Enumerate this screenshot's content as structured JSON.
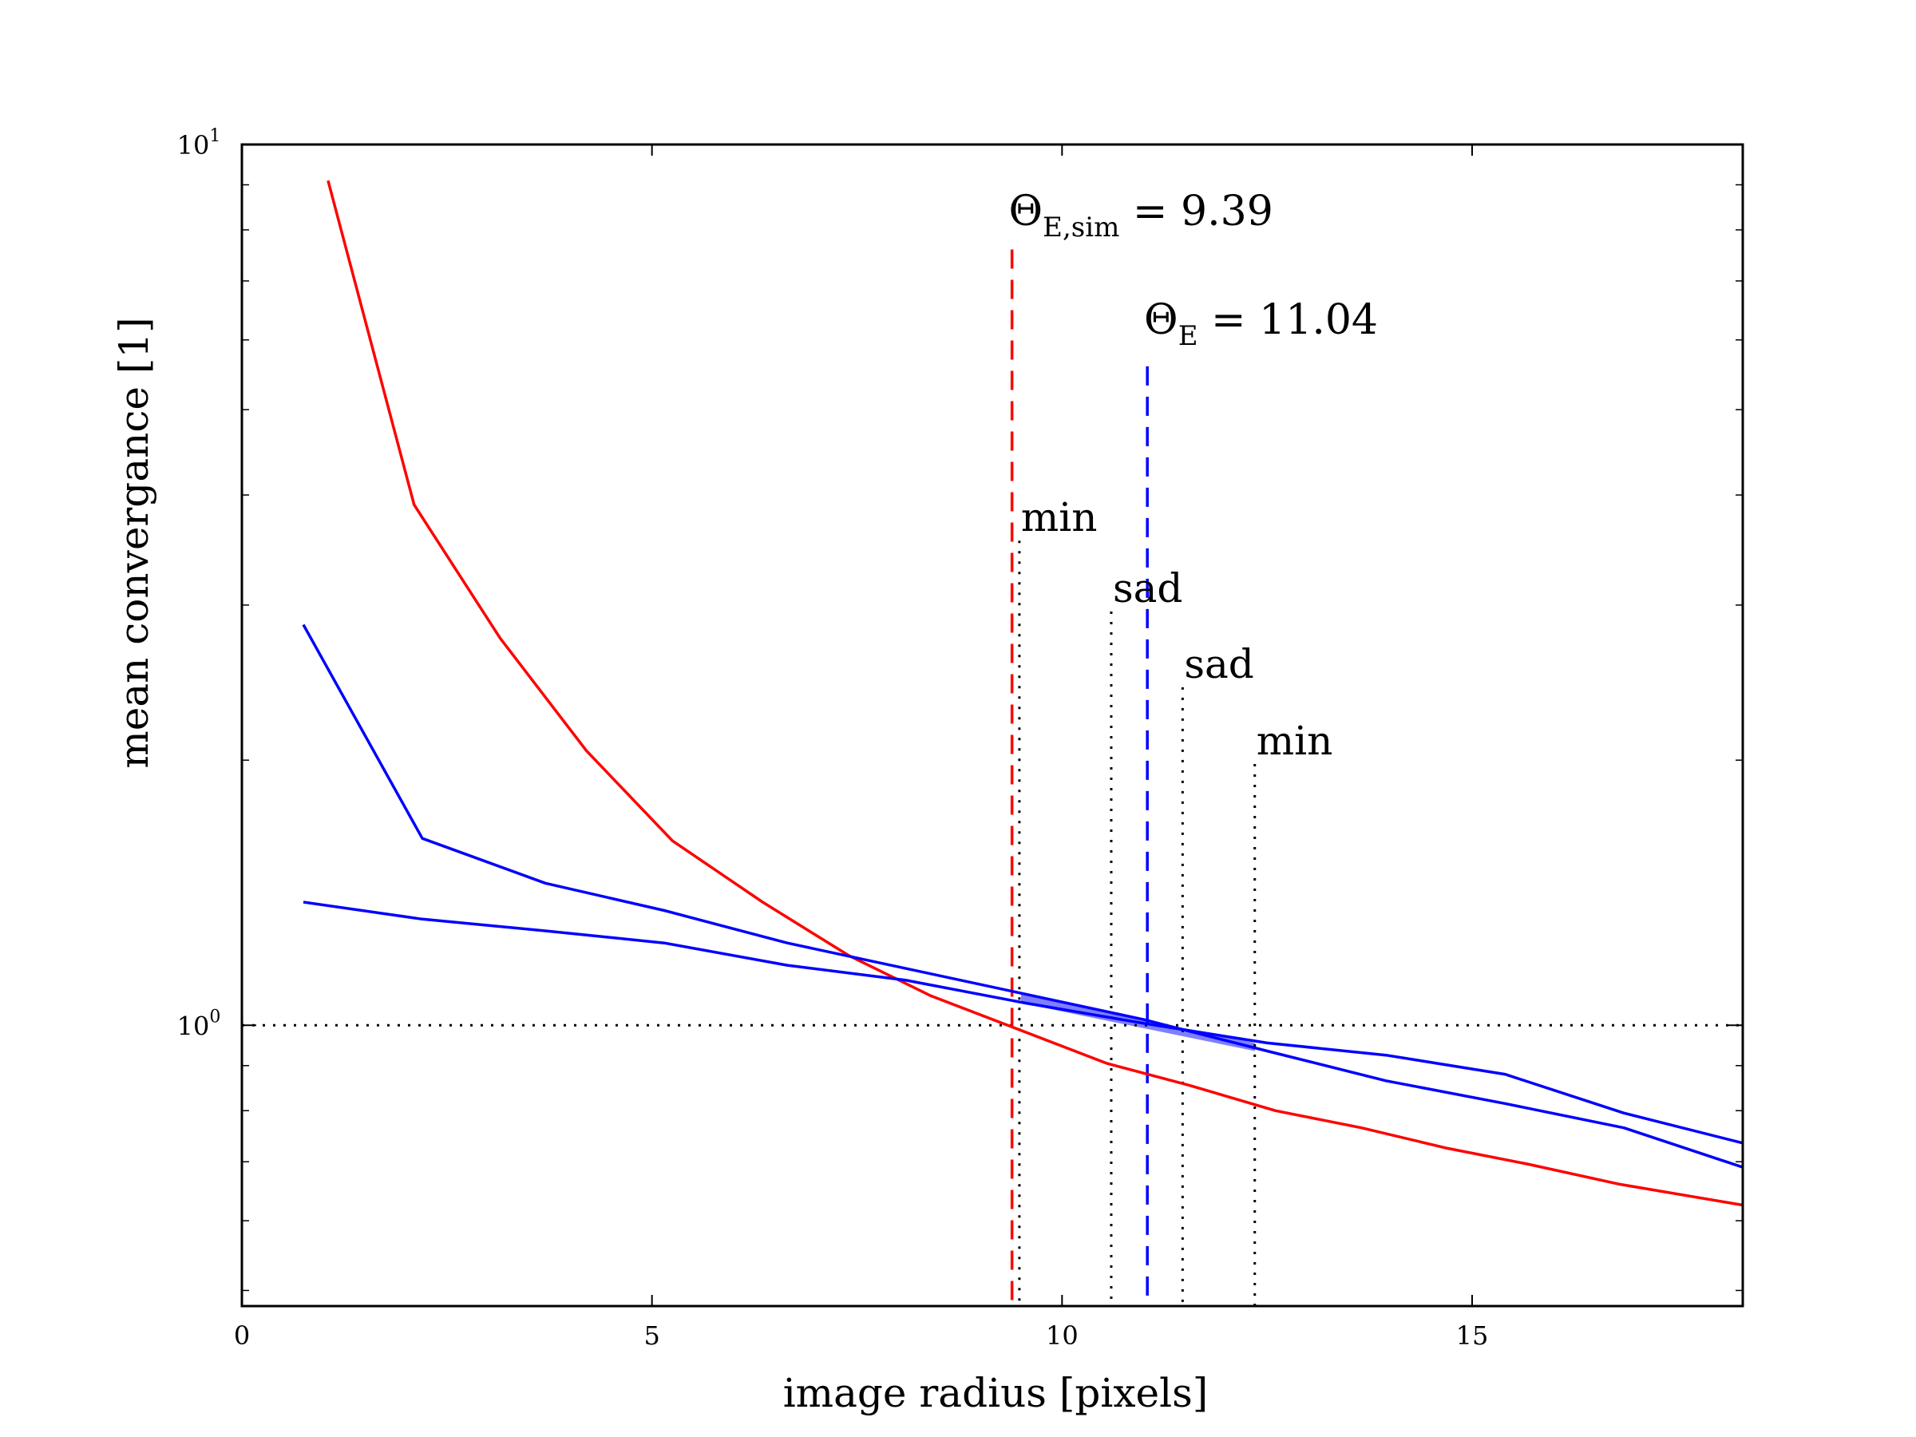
{
  "chart_data": {
    "type": "line",
    "xlabel": "image radius [pixels]",
    "ylabel": "mean convergance [1]",
    "xlim": [
      0,
      18.3
    ],
    "ylim": [
      0.48,
      10
    ],
    "yscale": "log",
    "grid": false,
    "x_ticks": [
      0,
      5,
      10,
      15
    ],
    "x_tick_labels": [
      "0",
      "5",
      "10",
      "15"
    ],
    "y_ticks": [
      {
        "value": 1,
        "base": "10",
        "exp": "0"
      },
      {
        "value": 10,
        "base": "10",
        "exp": "1"
      }
    ],
    "series": [
      {
        "color": "#ff0000",
        "x": [
          1.05,
          2.1,
          3.15,
          4.2,
          5.25,
          6.35,
          7.4,
          8.4,
          9.4,
          10.55,
          11.55,
          12.6,
          13.65,
          14.7,
          15.7,
          16.8,
          18.3
        ],
        "y": [
          9.1,
          3.9,
          2.75,
          2.05,
          1.62,
          1.38,
          1.2,
          1.08,
          0.995,
          0.905,
          0.855,
          0.8,
          0.765,
          0.725,
          0.695,
          0.66,
          0.625
        ]
      },
      {
        "color": "#0000ff",
        "x": [
          0.75,
          2.2,
          3.7,
          5.15,
          6.65,
          8.1,
          9.55,
          11.0,
          12.5,
          13.95,
          15.4,
          16.85,
          18.3
        ],
        "y": [
          2.85,
          1.63,
          1.45,
          1.35,
          1.24,
          1.16,
          1.085,
          1.015,
          0.935,
          0.865,
          0.815,
          0.765,
          0.69
        ]
      },
      {
        "color": "#0000ff",
        "x": [
          0.75,
          2.2,
          3.7,
          5.15,
          6.65,
          8.1,
          9.55,
          11.0,
          12.5,
          13.95,
          15.4,
          16.85,
          18.3
        ],
        "y": [
          1.38,
          1.32,
          1.28,
          1.24,
          1.17,
          1.125,
          1.06,
          1.005,
          0.955,
          0.925,
          0.88,
          0.795,
          0.735
        ]
      }
    ],
    "shaded_band": {
      "color": "#0000ff",
      "x": [
        9.5,
        12.35
      ],
      "lower": [
        1.06,
        0.935
      ],
      "upper": [
        1.085,
        0.955
      ]
    },
    "hline": {
      "y": 1,
      "style": "dotted",
      "color": "#000000"
    },
    "vlines": [
      {
        "x": 9.39,
        "y_top": 7.6,
        "color": "#ff0000",
        "style": "dashed"
      },
      {
        "x": 11.04,
        "y_top": 5.6,
        "color": "#0000ff",
        "style": "dashed"
      },
      {
        "x": 9.48,
        "y_top": 3.55,
        "color": "#000000",
        "style": "dotted",
        "label": "min"
      },
      {
        "x": 10.6,
        "y_top": 2.95,
        "color": "#000000",
        "style": "dotted",
        "label": "sad"
      },
      {
        "x": 11.47,
        "y_top": 2.42,
        "color": "#000000",
        "style": "dotted",
        "label": "sad"
      },
      {
        "x": 12.35,
        "y_top": 1.98,
        "color": "#000000",
        "style": "dotted",
        "label": "min"
      }
    ],
    "annotations": [
      {
        "symbol": "Θ",
        "sub": "E,sim",
        "text": " = 9.39",
        "x": 9.35,
        "y": 8.1
      },
      {
        "symbol": "Θ",
        "sub": "E",
        "text": " = 11.04",
        "x": 11.0,
        "y": 6.1
      }
    ]
  }
}
